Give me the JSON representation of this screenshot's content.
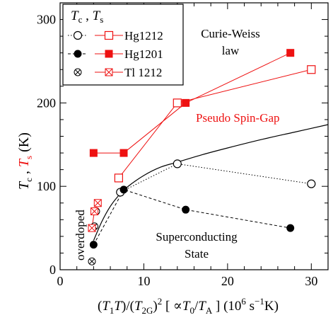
{
  "chart_data": {
    "type": "scatter",
    "xlim": [
      0,
      32
    ],
    "ylim": [
      0,
      320
    ],
    "x_ticks": [
      "0",
      "10",
      "20",
      "30"
    ],
    "y_ticks": [
      "0",
      "100",
      "200",
      "300"
    ],
    "grid": false,
    "legend_position": "top-left",
    "legend_header": {
      "tc": "T",
      "tc_sub": "c",
      "sep": " , ",
      "ts": "T",
      "ts_sub": "s"
    },
    "xlabel_parts": {
      "p1": "(",
      "t1": "T",
      "t1_sub": "1",
      "t": "T",
      "p2": ")/(",
      "t2": "T",
      "t2_sub": "2G",
      "p3": ")",
      "p3_sup": "2",
      "p4": " [ ∝",
      "t0": "T",
      "t0_sub": "0",
      "slash": "/",
      "ta": "T",
      "ta_sub": "A",
      "p5": " ]  (10",
      "p5_sup": "6",
      "p6": " s",
      "p6_sup": "−1",
      "p7": "K)"
    },
    "ylabel_parts": {
      "tc": "T",
      "tc_sub": "c",
      "sep": " , ",
      "ts": "T",
      "ts_sub": "s",
      "unit": " (K)"
    },
    "colors": {
      "tc": "#000000",
      "ts": "#ee1111"
    },
    "series": [
      {
        "name": "Hg1212",
        "role": "Tc",
        "marker": "open-circle",
        "line": "dotted",
        "color": "#000000",
        "points": [
          [
            7.2,
            93
          ],
          [
            14,
            127
          ],
          [
            30,
            103
          ]
        ]
      },
      {
        "name": "Hg1212",
        "role": "Ts",
        "marker": "open-square",
        "line": "solid",
        "color": "#ee1111",
        "points": [
          [
            7.0,
            110
          ],
          [
            14,
            200
          ],
          [
            30,
            240
          ]
        ]
      },
      {
        "name": "Hg1201",
        "role": "Tc",
        "marker": "filled-circle",
        "line": "dashed",
        "color": "#000000",
        "points": [
          [
            4.0,
            30
          ],
          [
            7.6,
            96
          ],
          [
            15,
            72
          ],
          [
            27.5,
            50
          ]
        ]
      },
      {
        "name": "Hg1201",
        "role": "Ts",
        "marker": "filled-square",
        "line": "solid",
        "color": "#ee1111",
        "points": [
          [
            4.0,
            140
          ],
          [
            7.6,
            140
          ],
          [
            15,
            200
          ],
          [
            27.5,
            260
          ]
        ]
      },
      {
        "name": "Tl 1212",
        "role": "Tc",
        "marker": "crossed-circle",
        "line": "none",
        "color": "#000000",
        "points": [
          [
            3.8,
            10
          ],
          [
            4.1,
            52
          ],
          [
            4.3,
            70
          ]
        ]
      },
      {
        "name": "Tl 1212",
        "role": "Ts",
        "marker": "crossed-square",
        "line": "solid",
        "color": "#ee1111",
        "points": [
          [
            3.8,
            50
          ],
          [
            4.1,
            70
          ],
          [
            4.5,
            80
          ]
        ]
      }
    ],
    "curve": {
      "line": "solid",
      "color": "#000000",
      "points": [
        [
          4,
          35
        ],
        [
          5,
          58
        ],
        [
          6,
          76
        ],
        [
          7,
          89
        ],
        [
          8,
          99
        ],
        [
          10,
          113
        ],
        [
          12,
          123
        ],
        [
          14,
          129
        ],
        [
          17,
          138
        ],
        [
          20,
          146
        ],
        [
          24,
          156
        ],
        [
          28,
          165
        ],
        [
          32,
          174
        ]
      ]
    },
    "annotations": {
      "curie_weiss_line1": "Curie-Weiss",
      "curie_weiss_line2": "law",
      "pseudo_spin_gap": "Pseudo Spin-Gap",
      "superconducting_line1": "Superconducting",
      "superconducting_line2": "State",
      "overdoped": "overdoped"
    }
  }
}
